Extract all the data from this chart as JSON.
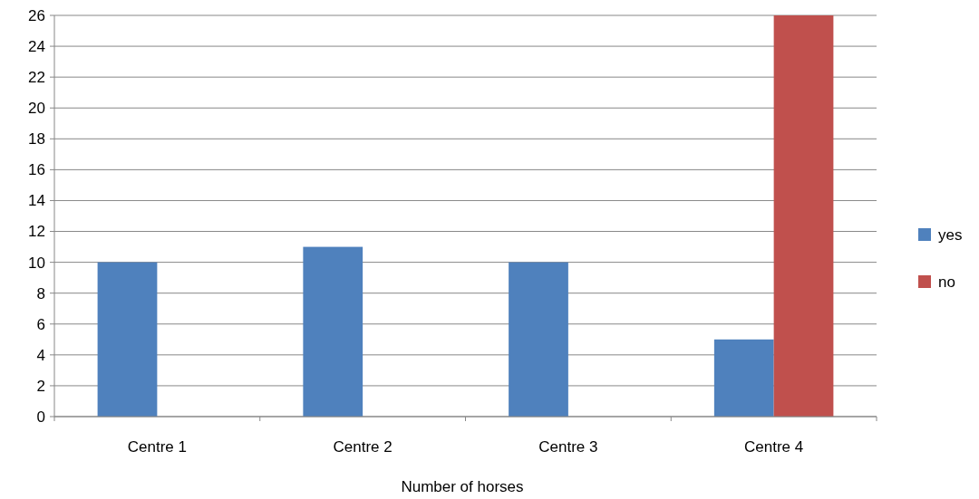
{
  "chart_data": {
    "type": "bar",
    "xlabel": "Number of horses",
    "categories": [
      "Centre 1",
      "Centre 2",
      "Centre 3",
      "Centre 4"
    ],
    "series": [
      {
        "name": "yes",
        "color": "#4f81bd",
        "values": [
          10,
          11,
          10,
          5
        ]
      },
      {
        "name": "no",
        "color": "#c0504d",
        "values": [
          null,
          null,
          null,
          26
        ]
      }
    ],
    "ylim": [
      0,
      26
    ],
    "yticks": [
      0,
      2,
      4,
      6,
      8,
      10,
      12,
      14,
      16,
      18,
      20,
      22,
      24,
      26
    ],
    "grid": "y",
    "legend": "right"
  }
}
